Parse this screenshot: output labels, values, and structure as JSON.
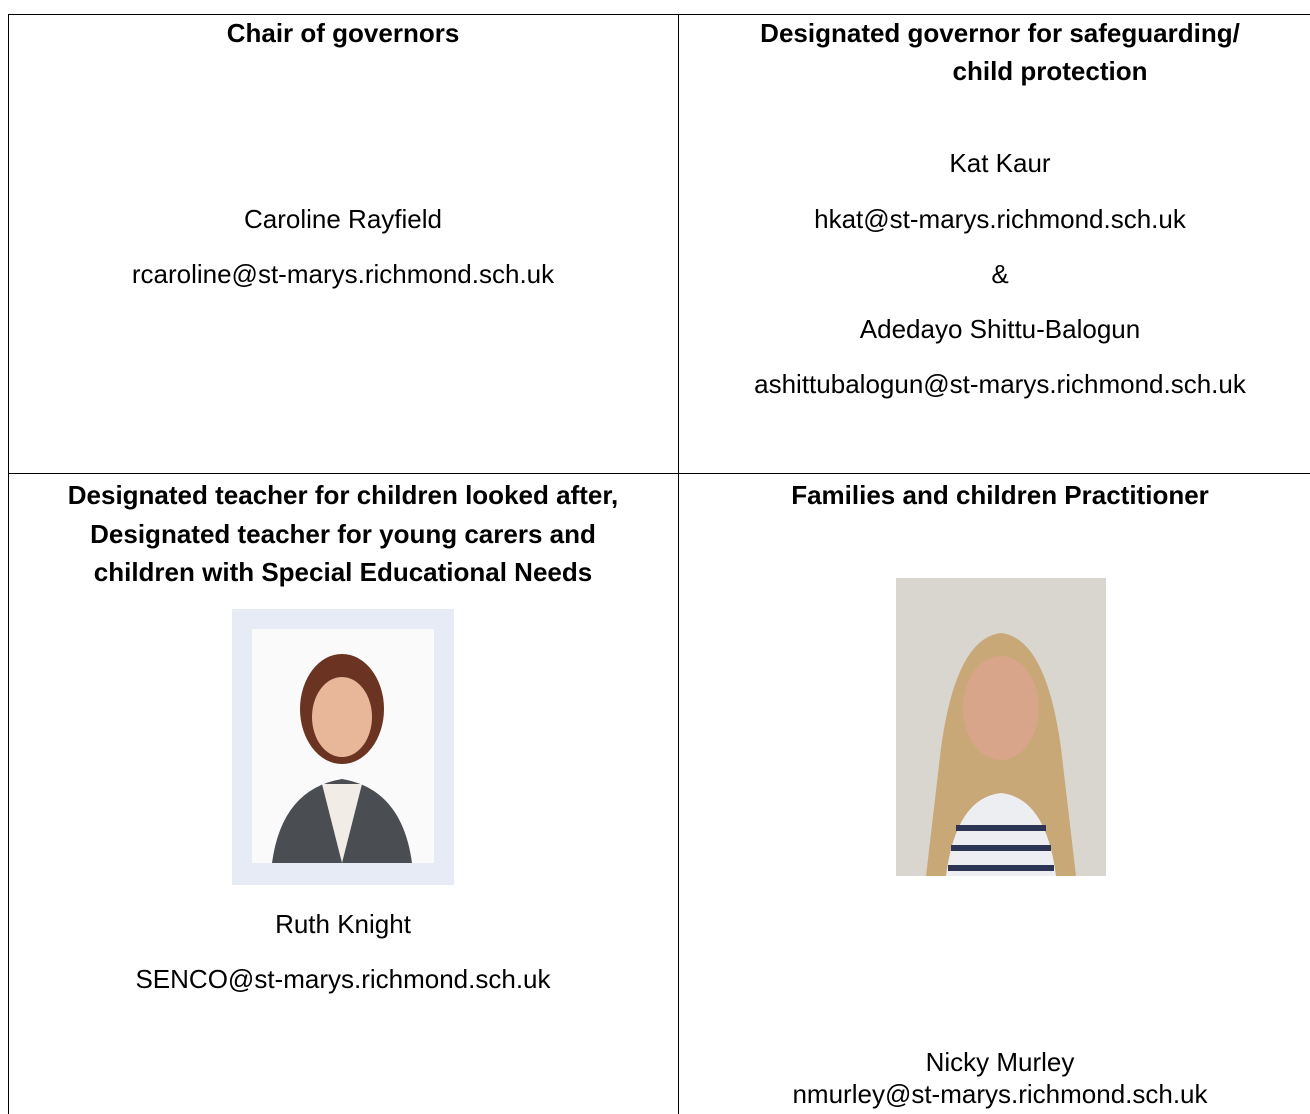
{
  "table": {
    "cells": [
      {
        "heading": [
          "Chair of governors"
        ],
        "lines": [
          "Caroline Rayfield",
          "rcaroline@st-marys.richmond.sch.uk"
        ]
      },
      {
        "heading": [
          "Designated governor for safeguarding/",
          "child protection"
        ],
        "lines": [
          "Kat Kaur",
          "hkat@st-marys.richmond.sch.uk",
          "&",
          "Adedayo Shittu-Balogun",
          "ashittubalogun@st-marys.richmond.sch.uk"
        ]
      },
      {
        "heading": [
          "Designated teacher for children looked after,",
          "Designated teacher for young carers and",
          "children with Special Educational Needs"
        ],
        "lines": [
          "Ruth Knight",
          "SENCO@st-marys.richmond.sch.uk"
        ]
      },
      {
        "heading": [
          "Families and children Practitioner"
        ],
        "lines": [
          "Nicky Murley",
          "nmurley@st-marys.richmond.sch.uk"
        ]
      }
    ]
  }
}
